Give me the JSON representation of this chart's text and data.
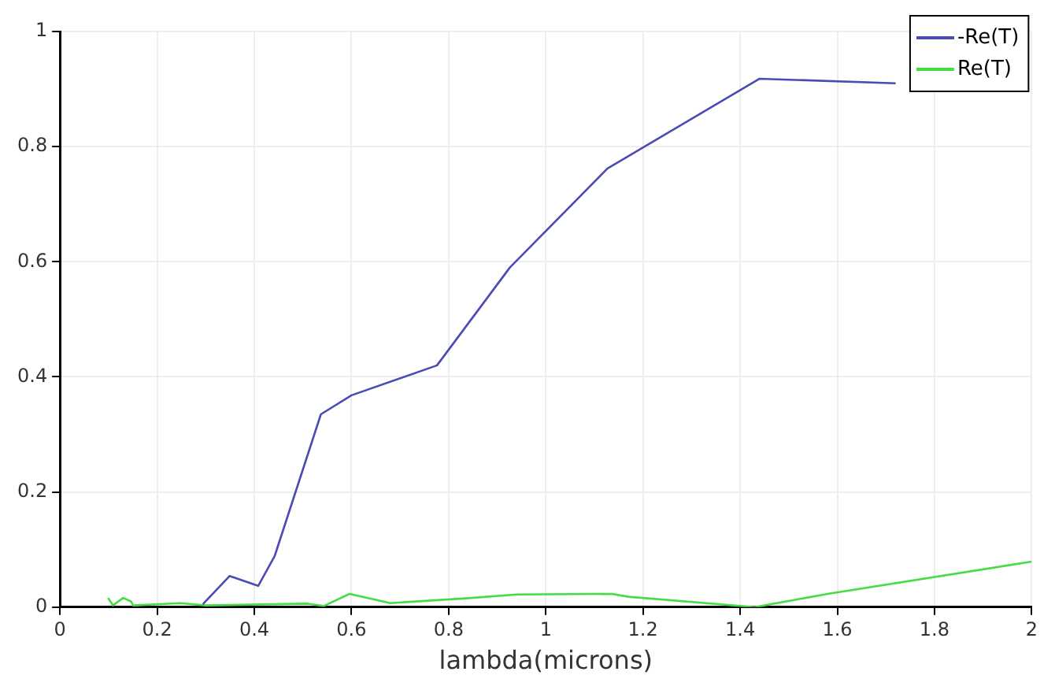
{
  "chart_data": {
    "type": "line",
    "xlabel": "lambda(microns)",
    "xlim": [
      0,
      2
    ],
    "xticks": [
      0,
      0.2,
      0.4,
      0.6,
      0.8,
      1,
      1.2,
      1.4,
      1.6,
      1.8,
      2
    ],
    "ylim": [
      0,
      1
    ],
    "yticks": [
      0,
      0.2,
      0.4,
      0.6,
      0.8,
      1
    ],
    "grid": true,
    "legend": "top right",
    "marker": "none",
    "line_style": "solid",
    "series": [
      {
        "name": "-Re(T)",
        "color": "#4b4bb4",
        "x": [
          0.294,
          0.349,
          0.408,
          0.442,
          0.537,
          0.6,
          0.776,
          0.926,
          1.127,
          1.44,
          1.72
        ],
        "values": [
          0.005,
          0.054,
          0.037,
          0.089,
          0.335,
          0.368,
          0.42,
          0.59,
          0.762,
          0.918,
          0.91
        ]
      },
      {
        "name": "Re(T)",
        "color": "#44dd44",
        "x": [
          0.099,
          0.109,
          0.13,
          0.146,
          0.151,
          0.247,
          0.3,
          0.51,
          0.543,
          0.596,
          0.68,
          0.83,
          0.94,
          1.136,
          1.17,
          1.43,
          1.58,
          2
        ],
        "values": [
          0.016,
          0.003,
          0.016,
          0.01,
          0.003,
          0.007,
          0.003,
          0.006,
          0.002,
          0.023,
          0.007,
          0.015,
          0.022,
          0.023,
          0.018,
          0,
          0.023,
          0.079
        ]
      }
    ]
  }
}
